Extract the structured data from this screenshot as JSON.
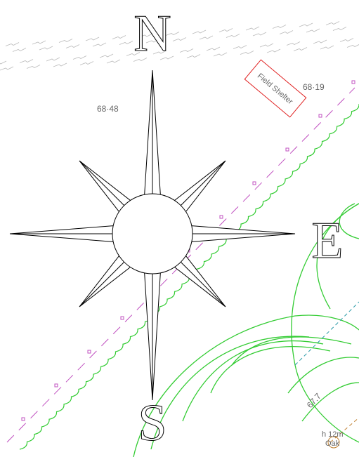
{
  "compass": {
    "north": "N",
    "east": "E",
    "south": "S"
  },
  "spot_heights": [
    "68·48",
    "68·19",
    "67.7"
  ],
  "building": {
    "label": "Field Shelter"
  },
  "tree": {
    "height": "h 12m",
    "species": "Oak"
  }
}
